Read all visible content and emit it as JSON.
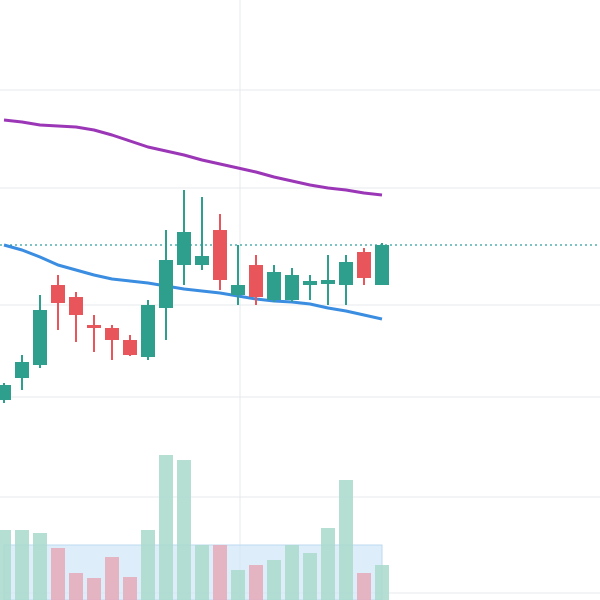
{
  "chart_data": {
    "type": "candlestick",
    "categories": [
      null,
      null,
      null,
      null,
      null,
      null,
      null,
      null,
      null,
      null,
      null,
      null,
      null,
      null,
      null,
      null,
      null,
      null,
      null,
      null,
      null,
      null
    ],
    "open": [
      200,
      222,
      235,
      315,
      303,
      275,
      272,
      260,
      243,
      292,
      335,
      335,
      370,
      305,
      335,
      300,
      300,
      315,
      316,
      315,
      348,
      315
    ],
    "high": [
      217,
      245,
      305,
      325,
      308,
      285,
      275,
      265,
      300,
      370,
      410,
      403,
      386,
      355,
      345,
      335,
      332,
      325,
      345,
      345,
      352,
      357
    ],
    "low": [
      197,
      210,
      232,
      270,
      258,
      248,
      240,
      244,
      240,
      260,
      315,
      330,
      310,
      295,
      295,
      298,
      298,
      300,
      295,
      295,
      315,
      315
    ],
    "close": [
      215,
      238,
      290,
      297,
      285,
      272,
      260,
      245,
      295,
      340,
      368,
      344,
      320,
      315,
      303,
      328,
      325,
      319,
      320,
      338,
      322,
      355
    ],
    "up_color": "#2e9f8c",
    "down_color": "#e8555a",
    "series": [
      {
        "type": "line",
        "color": "#9b36b7",
        "values": [
          480,
          478,
          475,
          474,
          473,
          470,
          465,
          459,
          453,
          449,
          445,
          440,
          436,
          432,
          428,
          423,
          419,
          415,
          412,
          410,
          407,
          405
        ]
      },
      {
        "type": "line",
        "color": "#3a8de0",
        "values": [
          355,
          350,
          343,
          335,
          330,
          325,
          321,
          319,
          317,
          314,
          311,
          309,
          307,
          304,
          301,
          299,
          298,
          296,
          292,
          289,
          285,
          281
        ]
      }
    ],
    "volume": [
      70,
      70,
      67,
      52,
      27,
      22,
      43,
      23,
      70,
      145,
      140,
      55,
      55,
      30,
      35,
      40,
      55,
      47,
      72,
      120,
      27,
      35
    ],
    "volume_up_color": "#a9d9cd",
    "volume_down_color": "#e6a9ba",
    "volume_ma": [
      55,
      55,
      55,
      55,
      55,
      55,
      55,
      55,
      55,
      55,
      55,
      55,
      55,
      55,
      55,
      55,
      55,
      55,
      55,
      55,
      55,
      55
    ],
    "volume_ma_color": "#cfe6f7",
    "last_price": 355,
    "last_price_color": "#2e9f9f",
    "ylim": [
      0,
      600
    ],
    "ygrid": [
      510,
      412,
      295,
      203,
      103,
      7
    ],
    "xgrid": [
      13
    ],
    "grid": true
  }
}
